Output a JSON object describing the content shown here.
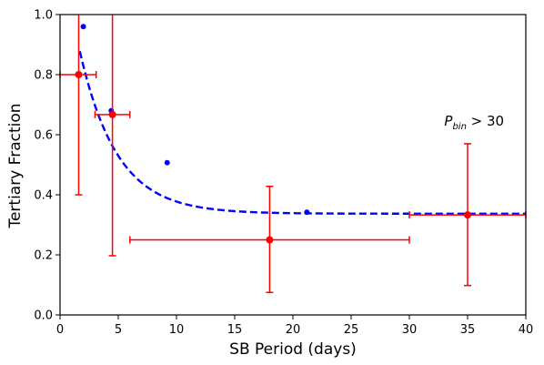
{
  "chart_data": {
    "type": "scatter",
    "xlabel": "SB Period (days)",
    "ylabel": "Tertiary Fraction",
    "xlim": [
      0,
      40
    ],
    "ylim": [
      0.0,
      1.0
    ],
    "xticks": [
      0,
      5,
      10,
      15,
      20,
      25,
      30,
      35,
      40
    ],
    "yticks": [
      0.0,
      0.2,
      0.4,
      0.6,
      0.8,
      1.0
    ],
    "xtick_labels": [
      "0",
      "5",
      "10",
      "15",
      "20",
      "25",
      "30",
      "35",
      "40"
    ],
    "ytick_labels": [
      "0.0",
      "0.2",
      "0.4",
      "0.6",
      "0.8",
      "1.0"
    ],
    "grid": false,
    "colors": {
      "binned": "#ff0000",
      "points": "#0000ff",
      "fit": "#0000ff"
    },
    "series": [
      {
        "style": "errorbar",
        "points": [
          {
            "x": 1.6,
            "y": 0.8,
            "xerr": [
              1.6,
              1.5
            ],
            "yerr": [
              0.4,
              0.2
            ]
          },
          {
            "x": 4.5,
            "y": 0.667,
            "xerr": [
              1.5,
              1.5
            ],
            "yerr": [
              0.47,
              0.333
            ]
          },
          {
            "x": 18.0,
            "y": 0.25,
            "xerr": [
              12.0,
              12.0
            ],
            "yerr": [
              0.175,
              0.178
            ]
          },
          {
            "x": 35.0,
            "y": 0.333,
            "xerr": [
              5.0,
              5.0
            ],
            "yerr": [
              0.235,
              0.237
            ]
          }
        ]
      },
      {
        "style": "points",
        "x": [
          2.0,
          4.4,
          9.2,
          21.2
        ],
        "y": [
          0.96,
          0.68,
          0.507,
          0.342
        ]
      },
      {
        "style": "dashed-line",
        "curve": {
          "a": 0.337,
          "b": 0.92,
          "tau": 3.2,
          "x_start": 1.7,
          "x_end": 40
        }
      }
    ],
    "annotation": {
      "text_main": "P",
      "text_sub": "bin",
      "text_tail": " > 30",
      "x": 33.0,
      "y": 0.63
    }
  }
}
